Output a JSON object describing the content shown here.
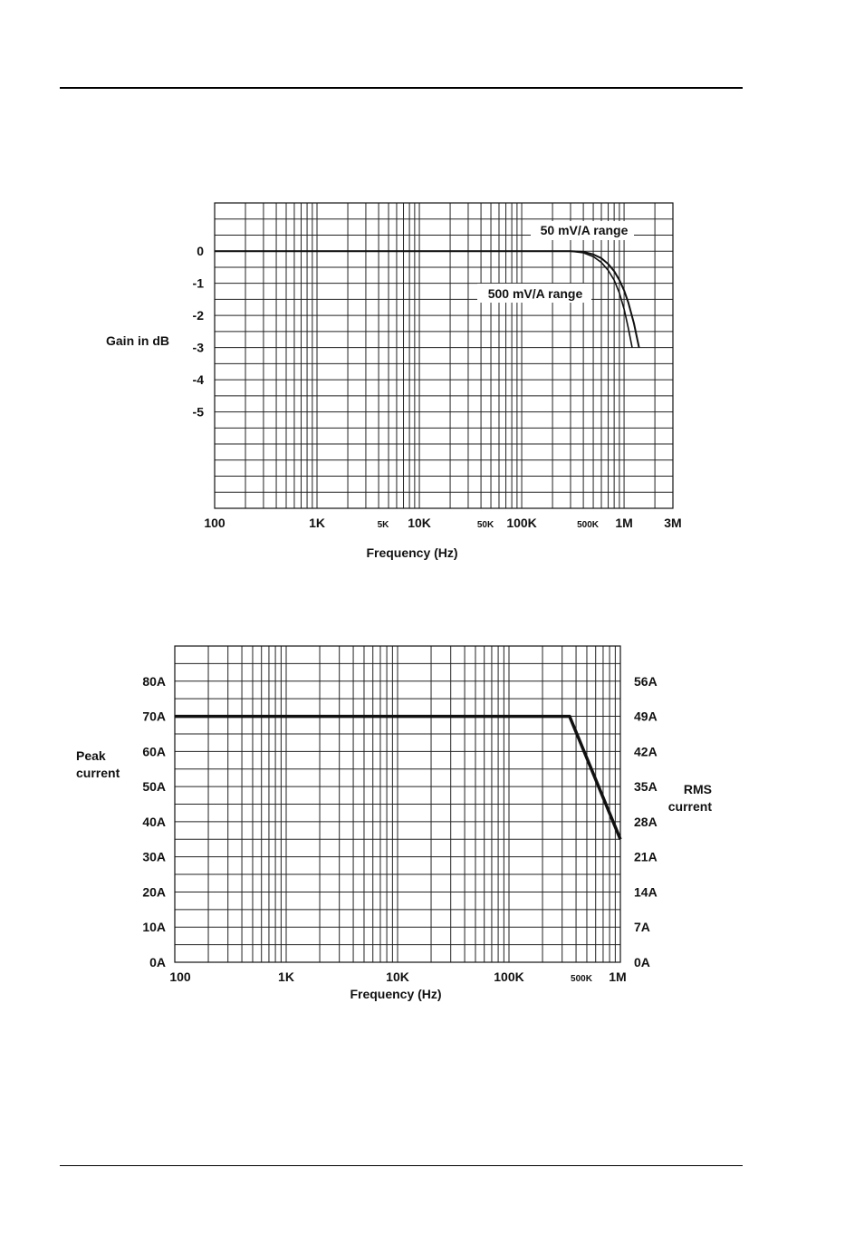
{
  "chart_data": [
    {
      "type": "line",
      "xscale": "log",
      "xlim": [
        100,
        3000000
      ],
      "ylim": [
        -8,
        1.5
      ],
      "xlabel": "Frequency (Hz)",
      "ylabel": "Gain in dB",
      "grid": true,
      "x_tick_labels": [
        {
          "value": 100,
          "label": "100",
          "size": "large"
        },
        {
          "value": 1000,
          "label": "1K",
          "size": "large"
        },
        {
          "value": 5000,
          "label": "5K",
          "size": "small"
        },
        {
          "value": 10000,
          "label": "10K",
          "size": "large"
        },
        {
          "value": 50000,
          "label": "50K",
          "size": "small"
        },
        {
          "value": 100000,
          "label": "100K",
          "size": "large"
        },
        {
          "value": 500000,
          "label": "500K",
          "size": "small"
        },
        {
          "value": 1000000,
          "label": "1M",
          "size": "large"
        },
        {
          "value": 3000000,
          "label": "3M",
          "size": "large"
        }
      ],
      "y_tick_labels": [
        {
          "value": 0,
          "label": "0"
        },
        {
          "value": -1,
          "label": "-1"
        },
        {
          "value": -2,
          "label": "-2"
        },
        {
          "value": -3,
          "label": "-3"
        },
        {
          "value": -4,
          "label": "-4"
        },
        {
          "value": -5,
          "label": "-5"
        }
      ],
      "series": [
        {
          "name": "50 mV/A range",
          "label_color": "#111111",
          "x": [
            100,
            1000,
            10000,
            100000,
            300000,
            400000,
            500000,
            600000,
            700000,
            800000,
            900000,
            1000000,
            1100000,
            1250000,
            1400000
          ],
          "values": [
            0,
            0,
            0,
            0,
            0,
            -0.02,
            -0.1,
            -0.22,
            -0.4,
            -0.62,
            -0.9,
            -1.22,
            -1.6,
            -2.25,
            -3.0
          ]
        },
        {
          "name": "500 mV/A range",
          "label_color": "#777777",
          "x": [
            100,
            1000,
            10000,
            100000,
            300000,
            400000,
            500000,
            600000,
            700000,
            800000,
            900000,
            1000000,
            1100000,
            1200000
          ],
          "values": [
            0,
            0,
            0,
            0,
            0,
            -0.05,
            -0.17,
            -0.35,
            -0.6,
            -0.9,
            -1.3,
            -1.8,
            -2.4,
            -3.0
          ]
        }
      ]
    },
    {
      "type": "line",
      "xscale": "log",
      "xlim": [
        100,
        1000000
      ],
      "ylim": [
        0,
        90
      ],
      "xlabel": "Frequency (Hz)",
      "ylabel_left": [
        "Peak",
        "current"
      ],
      "ylabel_right": [
        "RMS",
        "current"
      ],
      "grid": true,
      "x_tick_labels": [
        {
          "value": 100,
          "label": "100",
          "size": "large"
        },
        {
          "value": 1000,
          "label": "1K",
          "size": "large"
        },
        {
          "value": 10000,
          "label": "10K",
          "size": "large"
        },
        {
          "value": 100000,
          "label": "100K",
          "size": "large"
        },
        {
          "value": 500000,
          "label": "500K",
          "size": "small"
        },
        {
          "value": 1000000,
          "label": "1M",
          "size": "large"
        }
      ],
      "y_tick_labels_left": [
        {
          "value": 80,
          "label": "80A"
        },
        {
          "value": 70,
          "label": "70A"
        },
        {
          "value": 60,
          "label": "60A"
        },
        {
          "value": 50,
          "label": "50A"
        },
        {
          "value": 40,
          "label": "40A"
        },
        {
          "value": 30,
          "label": "30A"
        },
        {
          "value": 20,
          "label": "20A"
        },
        {
          "value": 10,
          "label": "10A"
        },
        {
          "value": 0,
          "label": "0A"
        }
      ],
      "y_tick_labels_right": [
        {
          "value": 80,
          "label": "56A"
        },
        {
          "value": 70,
          "label": "49A"
        },
        {
          "value": 60,
          "label": "42A"
        },
        {
          "value": 50,
          "label": "35A"
        },
        {
          "value": 40,
          "label": "28A"
        },
        {
          "value": 30,
          "label": "21A"
        },
        {
          "value": 20,
          "label": "14A"
        },
        {
          "value": 10,
          "label": "7A"
        },
        {
          "value": 0,
          "label": "0A"
        }
      ],
      "series": [
        {
          "x": [
            100,
            350000,
            1000000
          ],
          "values": [
            70,
            70,
            35
          ]
        }
      ]
    }
  ]
}
